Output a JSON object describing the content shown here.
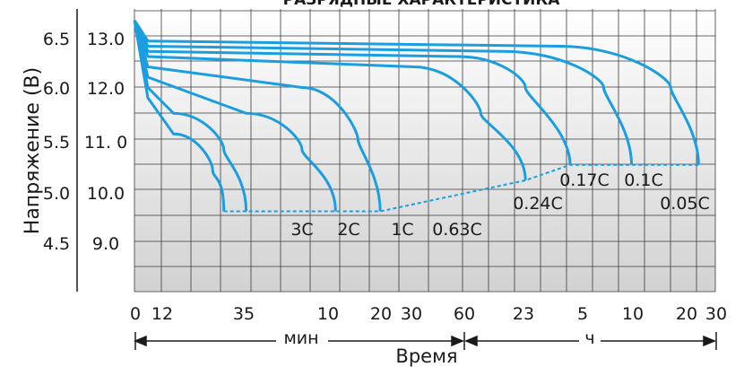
{
  "chart_data": {
    "type": "line",
    "title": "РАЗРЯДНЫЕ ХАРАКТЕРИСТИКА",
    "ylabel": "Напряжение (В)",
    "xlabel": "Время",
    "x_unit_left": "мин",
    "x_unit_right": "ч",
    "x_ticks": [
      "0",
      "12",
      "35",
      "10",
      "20",
      "30",
      "60",
      "23",
      "5",
      "10",
      "20",
      "30"
    ],
    "y_ticks_outer": [
      "6.5",
      "6.0",
      "5.5",
      "5.0",
      "4.5"
    ],
    "y_ticks_inner": [
      "13.0",
      "12.0",
      "11. 0",
      "10.0",
      "9.0"
    ],
    "ylim": [
      8.0,
      13.5
    ],
    "grid": true,
    "colors": {
      "line": "#1a9ee0",
      "plot_bg_top": "#ffffff",
      "plot_bg_bottom": "#d2d2d2",
      "grid": "#3a3a3a"
    },
    "series": [
      {
        "name": "3C",
        "end_label": "3C",
        "points": [
          [
            0,
            13.3
          ],
          [
            12,
            11.8
          ],
          [
            35,
            11.1
          ],
          [
            70,
            10.4
          ],
          [
            80,
            9.6
          ]
        ]
      },
      {
        "name": "2C",
        "end_label": "2C",
        "points": [
          [
            0,
            13.3
          ],
          [
            12,
            12.0
          ],
          [
            35,
            11.5
          ],
          [
            80,
            10.8
          ],
          [
            100,
            9.6
          ]
        ]
      },
      {
        "name": "1C",
        "end_label": "1C",
        "points": [
          [
            0,
            13.3
          ],
          [
            12,
            12.2
          ],
          [
            100,
            11.5
          ],
          [
            150,
            10.8
          ],
          [
            180,
            9.6
          ]
        ]
      },
      {
        "name": "0.63C",
        "end_label": "0.63C",
        "points": [
          [
            0,
            13.3
          ],
          [
            12,
            12.4
          ],
          [
            150,
            12.0
          ],
          [
            200,
            11.0
          ],
          [
            220,
            9.6
          ]
        ]
      },
      {
        "name": "0.24C",
        "end_label": "0.24C",
        "points": [
          [
            0,
            13.3
          ],
          [
            12,
            12.6
          ],
          [
            250,
            12.4
          ],
          [
            310,
            11.5
          ],
          [
            350,
            10.2
          ]
        ]
      },
      {
        "name": "0.17C",
        "end_label": "0.17C",
        "points": [
          [
            0,
            13.3
          ],
          [
            12,
            12.7
          ],
          [
            290,
            12.6
          ],
          [
            350,
            12.0
          ],
          [
            390,
            10.5
          ]
        ]
      },
      {
        "name": "0.1C",
        "end_label": "0.1C",
        "points": [
          [
            0,
            13.3
          ],
          [
            12,
            12.8
          ],
          [
            330,
            12.7
          ],
          [
            420,
            12.0
          ],
          [
            445,
            10.5
          ]
        ]
      },
      {
        "name": "0.05C",
        "end_label": "0.05C",
        "points": [
          [
            0,
            13.3
          ],
          [
            12,
            12.9
          ],
          [
            380,
            12.8
          ],
          [
            480,
            12.0
          ],
          [
            505,
            10.5
          ]
        ]
      }
    ]
  }
}
